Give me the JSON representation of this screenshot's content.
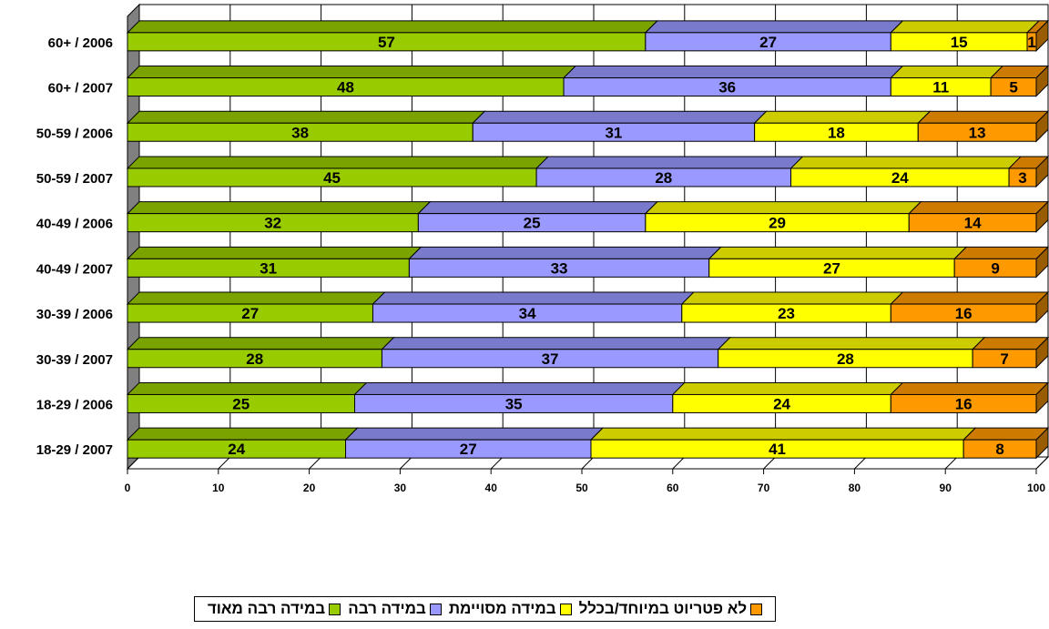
{
  "chart_data": {
    "type": "bar",
    "orientation": "horizontal",
    "stacked": true,
    "categories": [
      "60+ / 2006",
      "60+ / 2007",
      "50-59 / 2006",
      "50-59 / 2007",
      "40-49 / 2006",
      "40-49 / 2007",
      "30-39 / 2006",
      "30-39 / 2007",
      "18-29 / 2006",
      "18-29 / 2007"
    ],
    "series": [
      {
        "name": "במידה רבה מאוד",
        "color": "#99cc00",
        "values": [
          57,
          48,
          38,
          45,
          32,
          31,
          27,
          28,
          25,
          24
        ]
      },
      {
        "name": "במידה רבה",
        "color": "#9999ff",
        "values": [
          27,
          36,
          31,
          28,
          25,
          33,
          34,
          37,
          35,
          27
        ]
      },
      {
        "name": "במידה מסויימת",
        "color": "#ffff00",
        "values": [
          15,
          11,
          18,
          24,
          29,
          27,
          23,
          28,
          24,
          41
        ]
      },
      {
        "name": "לא פטריוט במיוחד/בכלל",
        "color": "#ff9900",
        "values": [
          1,
          5,
          13,
          3,
          14,
          9,
          16,
          7,
          16,
          8
        ]
      }
    ],
    "xlim": [
      0,
      100
    ],
    "xticks": [
      "0",
      "10",
      "20",
      "30",
      "40",
      "50",
      "60",
      "70",
      "80",
      "90",
      "100"
    ],
    "grid": true,
    "legend_position": "bottom"
  }
}
